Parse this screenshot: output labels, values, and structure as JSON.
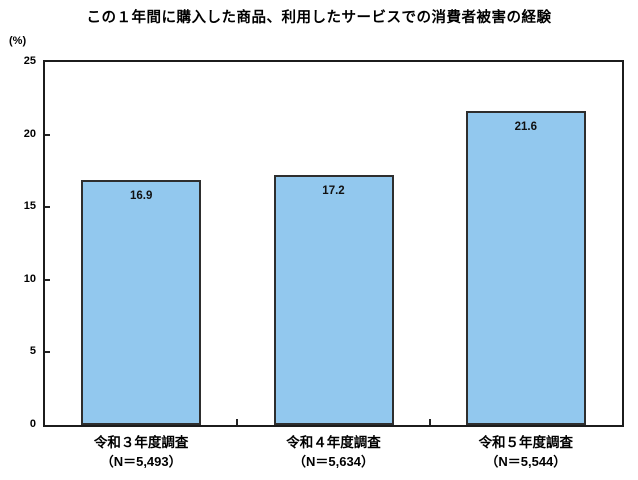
{
  "chart_data": {
    "type": "bar",
    "title": "この１年間に購入した商品、利用したサービスでの消費者被害の経験",
    "unit_label": "(%)",
    "categories": [
      "令和３年度調査",
      "令和４年度調査",
      "令和５年度調査"
    ],
    "category_sublabels": [
      "（N＝5,493）",
      "（N＝5,634）",
      "（N＝5,544）"
    ],
    "values": [
      16.9,
      17.2,
      21.6
    ],
    "value_labels": [
      "16.9",
      "17.2",
      "21.6"
    ],
    "ylabel": "",
    "xlabel": "",
    "ylim": [
      0,
      25
    ],
    "yticks": [
      0,
      5,
      10,
      15,
      20,
      25
    ],
    "ytick_labels": [
      "0",
      "5",
      "10",
      "15",
      "20",
      "25"
    ],
    "grid": false,
    "legend": "none",
    "bar_fill": "#92C8EE",
    "bar_border": "#2E2E2E",
    "axis_color": "#1C1C1C"
  }
}
